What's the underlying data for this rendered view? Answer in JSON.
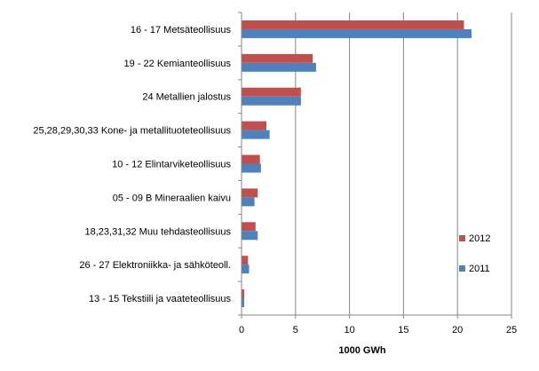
{
  "chart_data": {
    "type": "bar",
    "orientation": "horizontal",
    "categories": [
      "16 - 17 Metsäteollisuus",
      "19 - 22 Kemianteollisuus",
      "24 Metallien jalostus",
      "25,28,29,30,33 Kone- ja metallituoteteollisuus",
      "10 - 12 Elintarviketeollisuus",
      "05 - 09 B Mineraalien kaivu",
      "18,23,31,32 Muu tehdasteollisuus",
      "26 - 27 Elektroniikka- ja sähköteoll.",
      "13 - 15 Tekstiili ja vaateteollisuus"
    ],
    "series": [
      {
        "name": "2012",
        "color": "#C0504D",
        "values": [
          20.6,
          6.6,
          5.5,
          2.3,
          1.7,
          1.5,
          1.3,
          0.6,
          0.25
        ]
      },
      {
        "name": "2011",
        "color": "#4F81BD",
        "values": [
          21.3,
          6.9,
          5.5,
          2.6,
          1.8,
          1.2,
          1.5,
          0.7,
          0.25
        ]
      }
    ],
    "xlabel": "1000 GWh",
    "xlim": [
      0,
      25
    ],
    "xticks": [
      "0",
      "5",
      "10",
      "15",
      "20",
      "25"
    ],
    "grid": "vertical",
    "legend": {
      "placement": "right",
      "items": [
        "2012",
        "2011"
      ]
    }
  }
}
